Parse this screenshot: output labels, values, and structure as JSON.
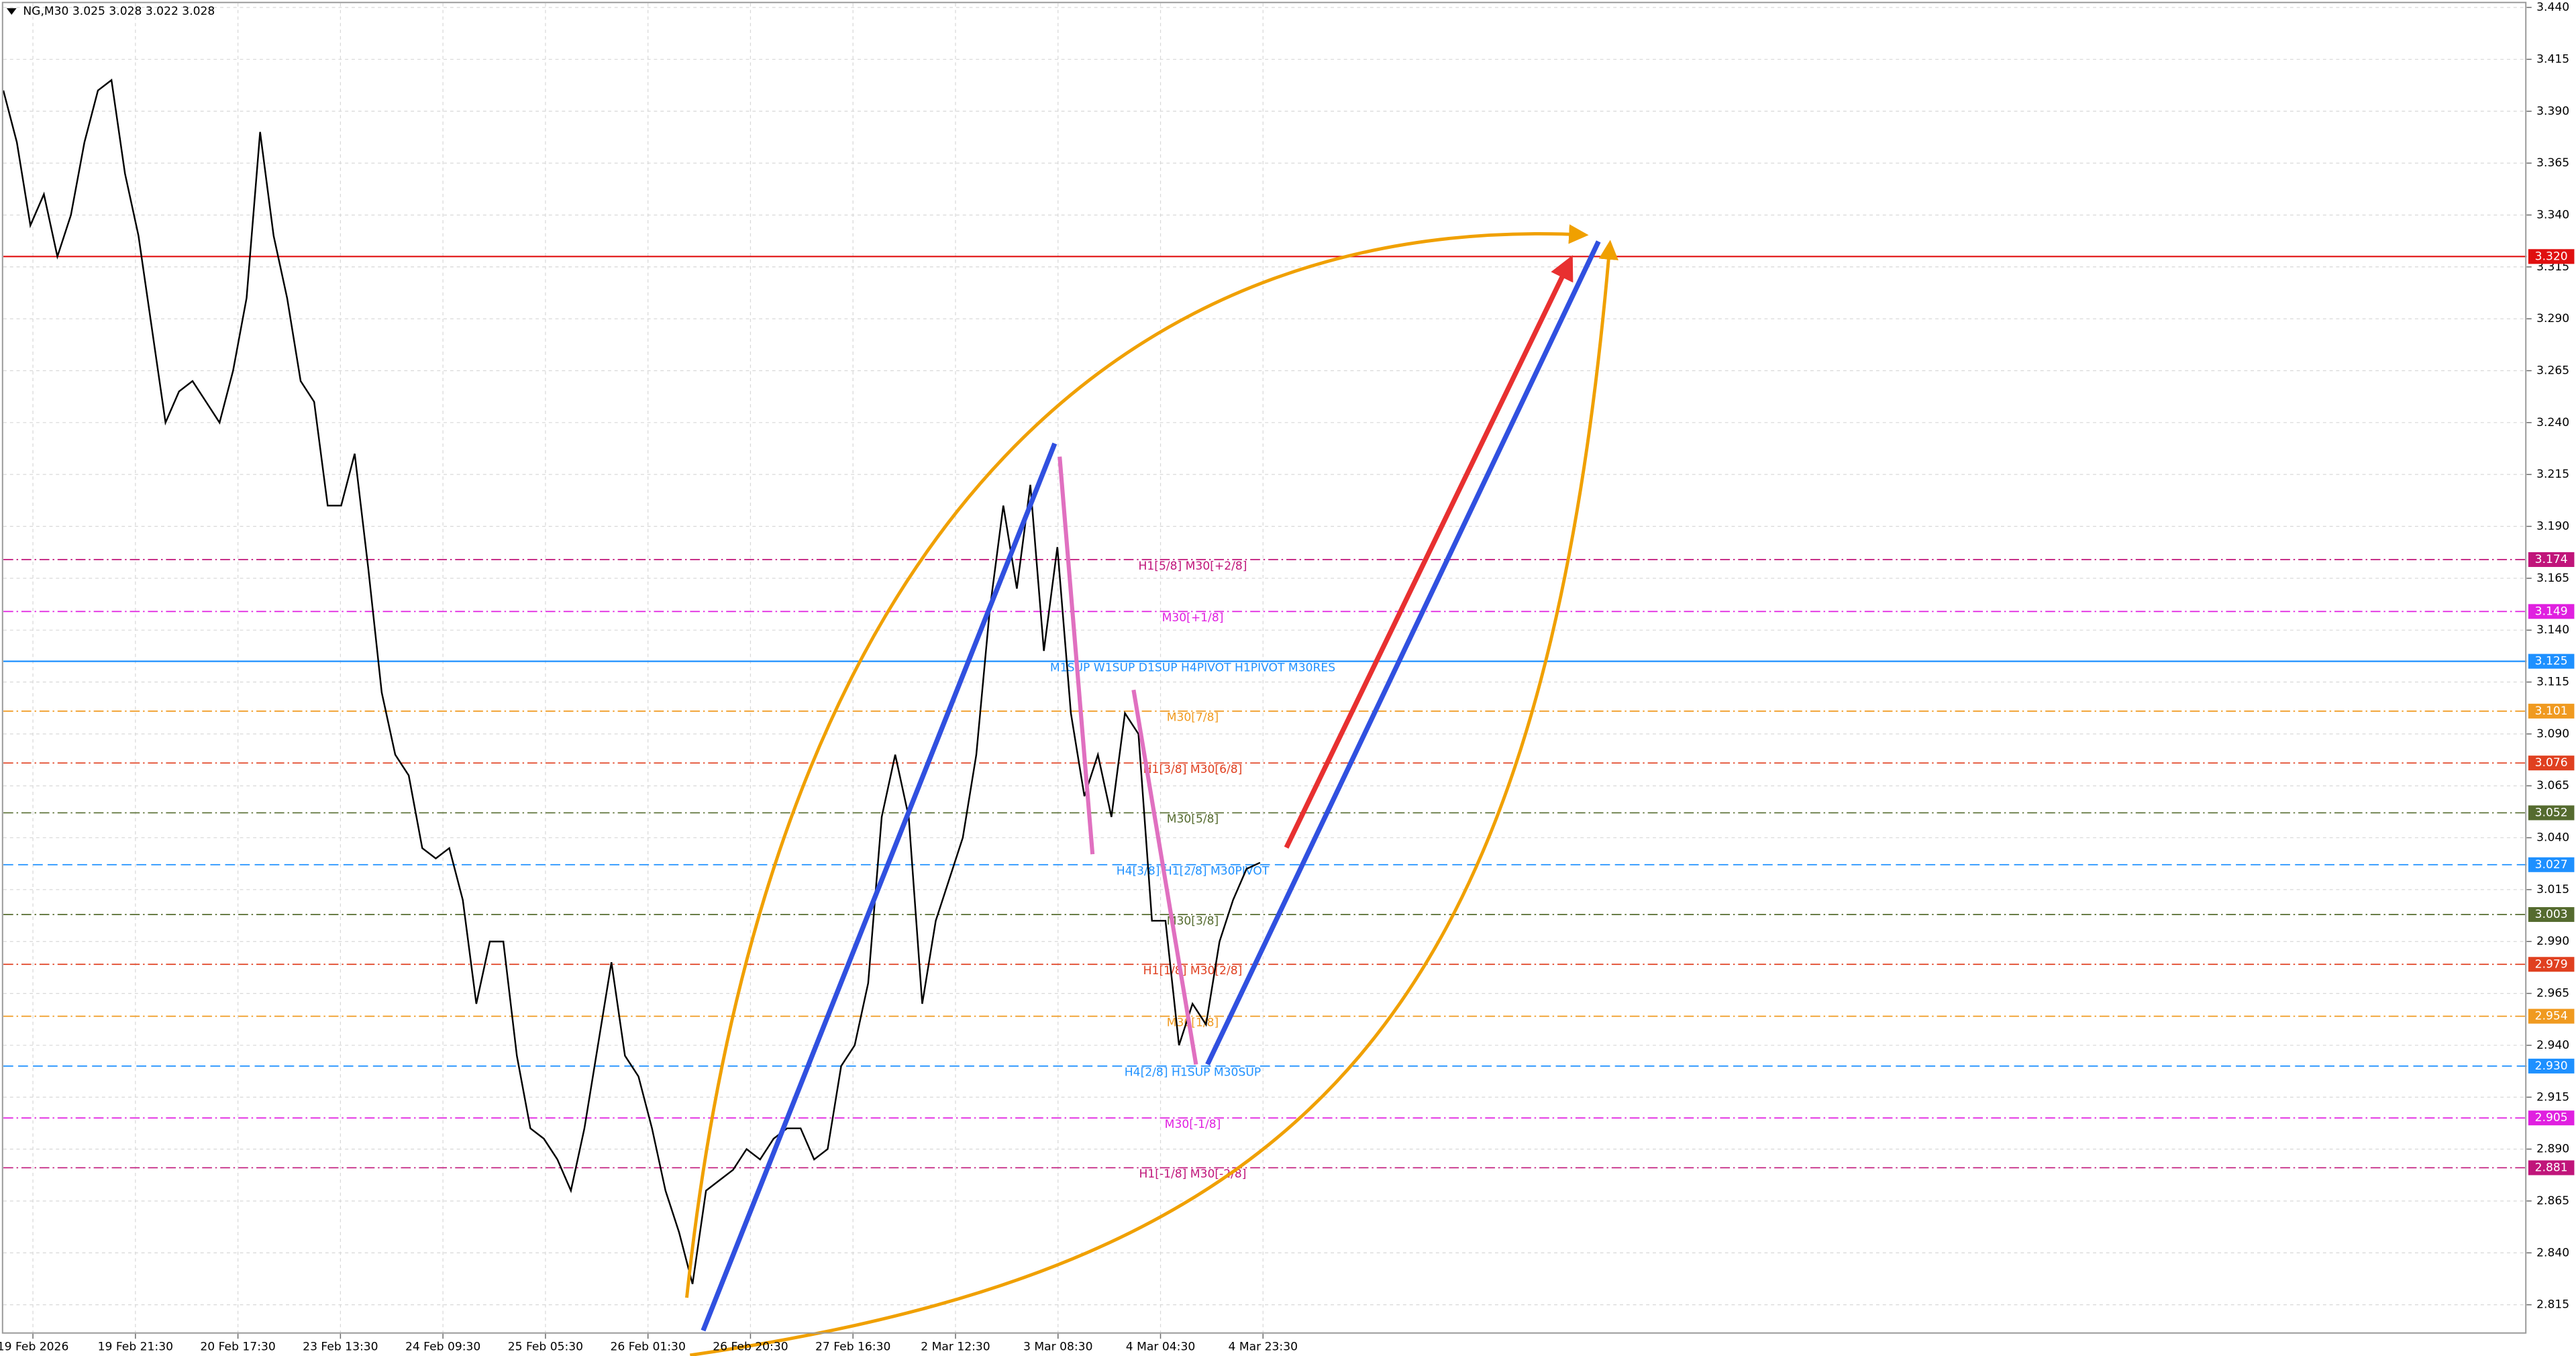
{
  "chart_data": {
    "type": "line",
    "title": "NG,M30  3.025 3.028 3.022 3.028",
    "values": [
      3.4,
      3.375,
      3.335,
      3.35,
      3.32,
      3.34,
      3.375,
      3.4,
      3.405,
      3.36,
      3.33,
      3.285,
      3.24,
      3.255,
      3.26,
      3.25,
      3.24,
      3.265,
      3.3,
      3.38,
      3.33,
      3.3,
      3.26,
      3.25,
      3.2,
      3.2,
      3.225,
      3.17,
      3.11,
      3.08,
      3.07,
      3.035,
      3.03,
      3.035,
      3.01,
      2.96,
      2.99,
      2.99,
      2.935,
      2.9,
      2.895,
      2.885,
      2.87,
      2.9,
      2.94,
      2.98,
      2.935,
      2.925,
      2.9,
      2.87,
      2.85,
      2.825,
      2.87,
      2.875,
      2.88,
      2.89,
      2.885,
      2.895,
      2.9,
      2.9,
      2.885,
      2.89,
      2.93,
      2.94,
      2.97,
      3.05,
      3.08,
      3.05,
      2.96,
      3.0,
      3.02,
      3.04,
      3.08,
      3.15,
      3.2,
      3.16,
      3.21,
      3.13,
      3.18,
      3.1,
      3.06,
      3.08,
      3.05,
      3.1,
      3.09,
      3.0,
      3.0,
      2.94,
      2.96,
      2.95,
      2.99,
      3.01,
      3.025,
      3.028
    ],
    "color": "#000000",
    "ylim": [
      2.801,
      3.442
    ],
    "yticks": [
      2.815,
      {
        "value": 2.84,
        "label": "2.840"
      },
      2.865,
      {
        "value": 2.89,
        "label": "2.890"
      },
      2.915,
      {
        "value": 2.94,
        "label": "2.940"
      },
      2.965,
      {
        "value": 2.99,
        "label": "2.990"
      },
      3.015,
      {
        "value": 3.04,
        "label": "3.040"
      },
      3.065,
      {
        "value": 3.09,
        "label": "3.090"
      },
      3.115,
      {
        "value": 3.14,
        "label": "3.140"
      },
      3.165,
      {
        "value": 3.19,
        "label": "3.190"
      },
      3.215,
      {
        "value": 3.24,
        "label": "3.240"
      },
      3.265,
      {
        "value": 3.29,
        "label": "3.290"
      },
      3.315,
      {
        "value": 3.34,
        "label": "3.340"
      },
      3.365,
      {
        "value": 3.39,
        "label": "3.390"
      },
      3.415,
      {
        "value": 3.44,
        "label": "3.440"
      }
    ],
    "xticklabels": [
      "19 Feb 2026",
      "19 Feb 21:30",
      "20 Feb 17:30",
      "23 Feb 13:30",
      "24 Feb 09:30",
      "25 Feb 05:30",
      "26 Feb 01:30",
      "26 Feb 20:30",
      "27 Feb 16:30",
      "2 Mar 12:30",
      "3 Mar 08:30",
      "4 Mar 04:30",
      "4 Mar 23:30"
    ],
    "grid": true,
    "levels": [
      {
        "price": {
          "value": 3.32,
          "label": "3.320"
        },
        "color": "#e01010",
        "style": "solid"
      },
      {
        "price": 3.174,
        "color": "#c0157a",
        "style": "dashdot",
        "text": "H1[5/8] M30[+2/8]"
      },
      {
        "price": 3.149,
        "color": "#e020e0",
        "style": "dashdot",
        "text": "M30[+1/8]"
      },
      {
        "price": 3.125,
        "color": "#1e90ff",
        "style": "solid",
        "text": "M1SUP W1SUP D1SUP H4PIVOT H1PIVOT M30RES"
      },
      {
        "price": 3.101,
        "color": "#f09a20",
        "style": "dashdot",
        "text": "M30[7/8]"
      },
      {
        "price": 3.076,
        "color": "#e04020",
        "style": "dashdot",
        "text": "H1[3/8] M30[6/8]"
      },
      {
        "price": 3.052,
        "color": "#556b2f",
        "style": "dashdot",
        "text": "M30[5/8]"
      },
      {
        "price": 3.027,
        "color": "#1e90ff",
        "style": "dash",
        "text": "H4[3/8] H1[2/8] M30PIVOT"
      },
      {
        "price": 3.003,
        "color": "#556b2f",
        "style": "dashdot",
        "text": "M30[3/8]"
      },
      {
        "price": 2.979,
        "color": "#e04020",
        "style": "dashdot",
        "text": "H1[1/8] M30[2/8]"
      },
      {
        "price": 2.954,
        "color": "#f09a20",
        "style": "dashdot",
        "text": "M30[1/8]"
      },
      {
        "price": {
          "value": 2.93,
          "label": "2.930"
        },
        "color": "#1e90ff",
        "style": "dash",
        "text": "H4[2/8] H1SUP M30SUP"
      },
      {
        "price": 2.905,
        "color": "#e020e0",
        "style": "dashdot",
        "text": "M30[-1/8]"
      },
      {
        "price": 2.881,
        "color": "#c0157a",
        "style": "dashdot",
        "text": "H1[-1/8] M30[-2/8]"
      }
    ]
  }
}
